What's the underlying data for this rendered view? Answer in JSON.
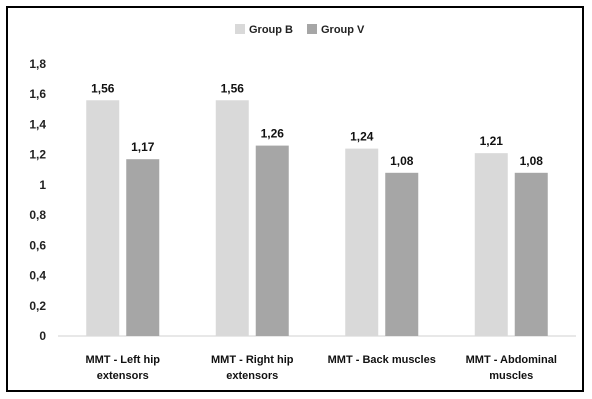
{
  "chart_data": {
    "type": "bar",
    "categories": [
      [
        "MMT - Left hip",
        "extensors"
      ],
      [
        "MMT - Right hip",
        "extensors"
      ],
      [
        "MMT - Back muscles"
      ],
      [
        "MMT - Abdominal",
        "muscles"
      ]
    ],
    "series": [
      {
        "name": "Group B",
        "values": [
          1.56,
          1.56,
          1.24,
          1.21
        ],
        "labels": [
          "1,56",
          "1,56",
          "1,24",
          "1,21"
        ],
        "color": "#d9d9d9"
      },
      {
        "name": "Group V",
        "values": [
          1.17,
          1.26,
          1.08,
          1.08
        ],
        "labels": [
          "1,17",
          "1,26",
          "1,08",
          "1,08"
        ],
        "color": "#a6a6a6"
      }
    ],
    "yticks": [
      {
        "value": 0,
        "label": "0"
      },
      {
        "value": 0.2,
        "label": "0,2"
      },
      {
        "value": 0.4,
        "label": "0,4"
      },
      {
        "value": 0.6,
        "label": "0,6"
      },
      {
        "value": 0.8,
        "label": "0,8"
      },
      {
        "value": 1.0,
        "label": "1"
      },
      {
        "value": 1.2,
        "label": "1,2"
      },
      {
        "value": 1.4,
        "label": "1,4"
      },
      {
        "value": 1.6,
        "label": "1,6"
      },
      {
        "value": 1.8,
        "label": "1,8"
      }
    ],
    "ylim": [
      0,
      1.8
    ],
    "title": "",
    "xlabel": "",
    "ylabel": "",
    "grid": false,
    "legend": "top-center"
  }
}
